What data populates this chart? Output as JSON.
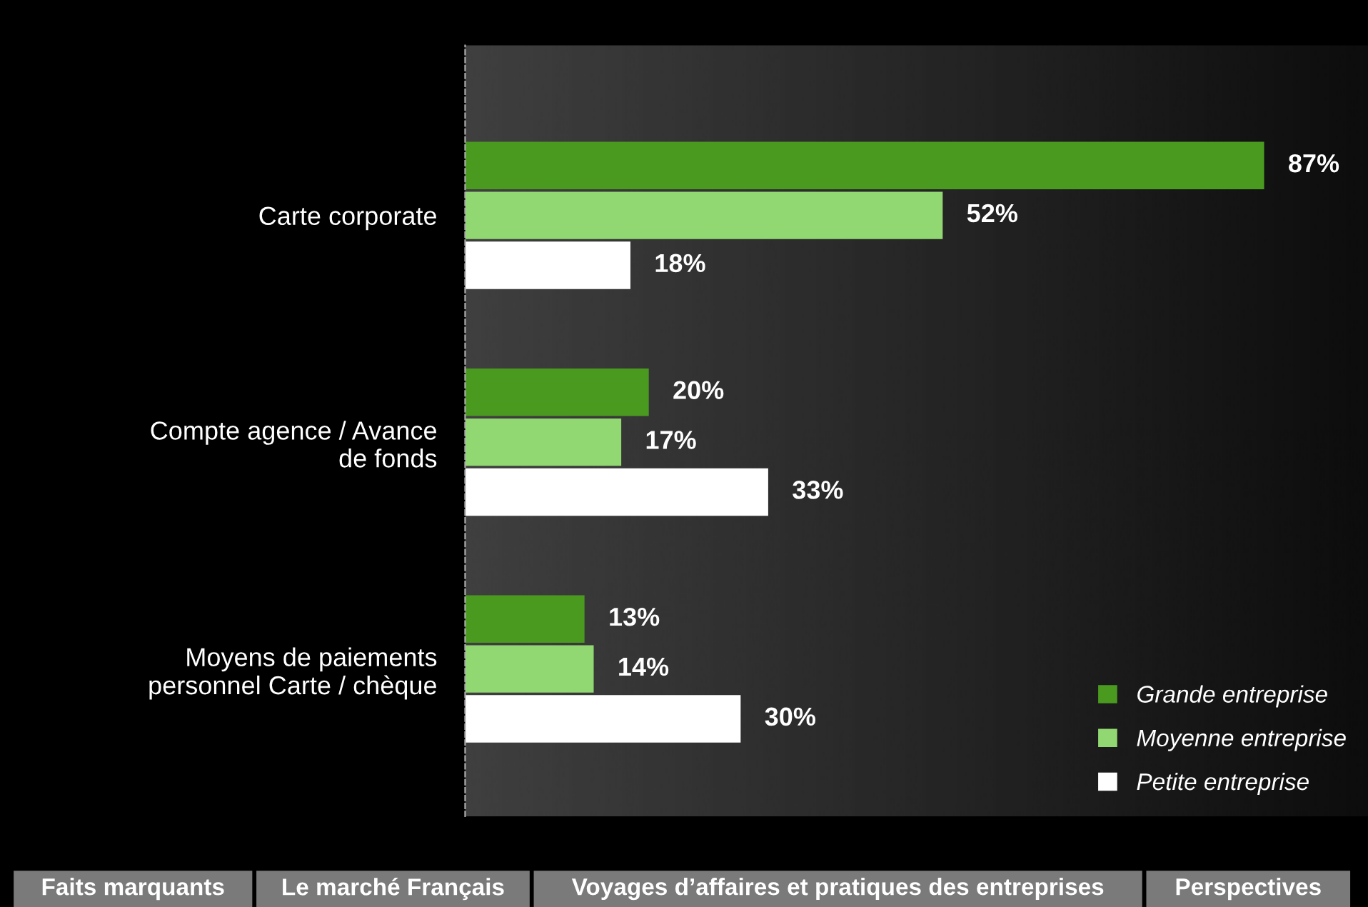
{
  "chart_data": {
    "type": "bar",
    "orientation": "horizontal",
    "categories": [
      "Carte corporate",
      "Compte agence / Avance\nde fonds",
      "Moyens de paiements\npersonnel Carte / chèque"
    ],
    "series": [
      {
        "name": "Grande entreprise",
        "color": "#4a9a20",
        "values": [
          87,
          20,
          13
        ],
        "value_labels": [
          "87%",
          "20%",
          "13%"
        ]
      },
      {
        "name": "Moyenne entreprise",
        "color": "#92d872",
        "values": [
          52,
          17,
          14
        ],
        "value_labels": [
          "52%",
          "17%",
          "14%"
        ]
      },
      {
        "name": "Petite entreprise",
        "color": "#ffffff",
        "values": [
          18,
          33,
          30
        ],
        "value_labels": [
          "18%",
          "33%",
          "30%"
        ]
      }
    ],
    "legend": "bottom right",
    "grid": false,
    "annotations": [
      "Faits marquants",
      "Le marché Français",
      "Voyages d’affaires et pratiques des entreprises",
      "Perspectives"
    ]
  }
}
